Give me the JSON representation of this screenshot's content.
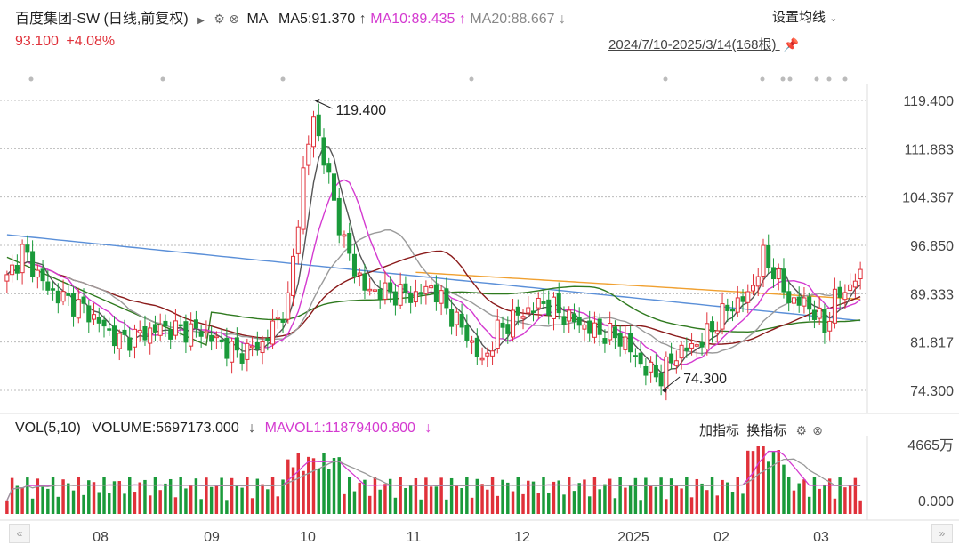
{
  "header": {
    "title": "百度集团-SW (日线,前复权)",
    "ma_label": "MA",
    "ma5": "MA5:91.370",
    "ma10": "MA10:89.435",
    "ma20": "MA20:88.667",
    "settings": "设置均线",
    "price": "93.100",
    "change": "+4.08%",
    "range": "2024/7/10-2025/3/14(168根)"
  },
  "volume_header": {
    "vol_label": "VOL(5,10)",
    "volume": "VOLUME:5697173.000",
    "mavol1": "MAVOL1:11879400.800",
    "add_indicator": "加指标",
    "switch_indicator": "换指标"
  },
  "chart_data": {
    "type": "candlestick",
    "y_ticks": [
      "119.400",
      "111.883",
      "104.367",
      "96.850",
      "89.333",
      "81.817",
      "74.300"
    ],
    "ylim": [
      74.3,
      119.4
    ],
    "x_ticks": [
      "08",
      "09",
      "10",
      "11",
      "12",
      "2025",
      "02",
      "03"
    ],
    "annotations": [
      {
        "text": "119.400",
        "value": 119.4
      },
      {
        "text": "74.300",
        "value": 74.3
      }
    ],
    "volume_ticks": [
      "4665万",
      "0.000"
    ],
    "colors": {
      "up": "#e0313a",
      "down": "#1a9a3a",
      "ma5": "#555555",
      "ma10": "#d43ad0",
      "ma20": "#9a9a9a",
      "ma30": "#8a1a1a",
      "ma60": "#2f7a1f",
      "ma120": "#5a8fd8",
      "ma250": "#f0a030"
    },
    "key_prices": [
      {
        "x": 0,
        "v": 91.5
      },
      {
        "x": 3,
        "v": 96.0
      },
      {
        "x": 8,
        "v": 90.0
      },
      {
        "x": 15,
        "v": 87.0
      },
      {
        "x": 22,
        "v": 82.0
      },
      {
        "x": 30,
        "v": 84.0
      },
      {
        "x": 38,
        "v": 83.5
      },
      {
        "x": 45,
        "v": 80.0
      },
      {
        "x": 50,
        "v": 81.5
      },
      {
        "x": 55,
        "v": 88.0
      },
      {
        "x": 58,
        "v": 108.0
      },
      {
        "x": 60,
        "v": 117.0
      },
      {
        "x": 63,
        "v": 107.0
      },
      {
        "x": 66,
        "v": 97.0
      },
      {
        "x": 70,
        "v": 90.0
      },
      {
        "x": 75,
        "v": 89.5
      },
      {
        "x": 80,
        "v": 89.0
      },
      {
        "x": 83,
        "v": 90.5
      },
      {
        "x": 87,
        "v": 86.0
      },
      {
        "x": 90,
        "v": 83.0
      },
      {
        "x": 93,
        "v": 78.5
      },
      {
        "x": 96,
        "v": 83.5
      },
      {
        "x": 100,
        "v": 86.0
      },
      {
        "x": 105,
        "v": 88.0
      },
      {
        "x": 110,
        "v": 85.5
      },
      {
        "x": 115,
        "v": 83.5
      },
      {
        "x": 120,
        "v": 82.5
      },
      {
        "x": 125,
        "v": 77.5
      },
      {
        "x": 128,
        "v": 76.5
      },
      {
        "x": 131,
        "v": 80.0
      },
      {
        "x": 136,
        "v": 82.0
      },
      {
        "x": 141,
        "v": 87.0
      },
      {
        "x": 145,
        "v": 89.0
      },
      {
        "x": 148,
        "v": 95.0
      },
      {
        "x": 150,
        "v": 93.0
      },
      {
        "x": 153,
        "v": 88.5
      },
      {
        "x": 157,
        "v": 87.5
      },
      {
        "x": 160,
        "v": 84.0
      },
      {
        "x": 162,
        "v": 88.5
      },
      {
        "x": 165,
        "v": 90.5
      },
      {
        "x": 167,
        "v": 93.1
      }
    ]
  }
}
